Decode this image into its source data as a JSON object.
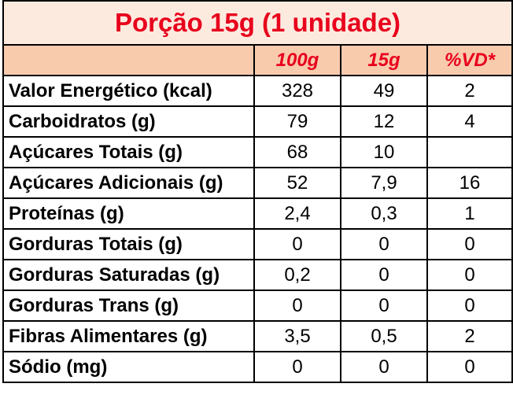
{
  "header": {
    "title": "Porção 15g (1 unidade)"
  },
  "table": {
    "columns": [
      "100g",
      "15g",
      "%VD*"
    ],
    "rows": [
      [
        "Valor Energético (kcal)",
        "328",
        "49",
        "2"
      ],
      [
        "Carboidratos (g)",
        "79",
        "12",
        "4"
      ],
      [
        "Açúcares Totais (g)",
        "68",
        "10",
        null
      ],
      [
        "Açúcares Adicionais (g)",
        "52",
        "7,9",
        "16"
      ],
      [
        "Proteínas (g)",
        "2,4",
        "0,3",
        "1"
      ],
      [
        "Gorduras Totais (g)",
        "0",
        "0",
        "0"
      ],
      [
        "Gorduras Saturadas (g)",
        "0,2",
        "0",
        "0"
      ],
      [
        "Gorduras Trans (g)",
        "0",
        "0",
        "0"
      ],
      [
        "Fibras Alimentares (g)",
        "3,5",
        "0,5",
        "2"
      ],
      [
        "Sódio (mg)",
        "0",
        "0",
        "0"
      ]
    ]
  }
}
